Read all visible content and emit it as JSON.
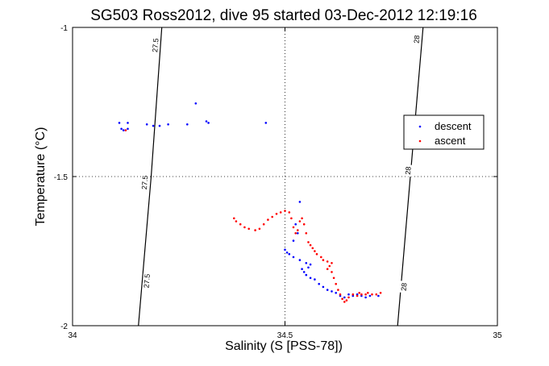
{
  "chart_data": {
    "type": "scatter",
    "title": "SG503 Ross2012, dive 95 started 03-Dec-2012 12:19:16",
    "xlabel": "Salinity (S [PSS-78])",
    "ylabel": "Temperature (°C)",
    "xlim": [
      34,
      35
    ],
    "ylim": [
      -2,
      -1
    ],
    "x_ticks": [
      34,
      34.5,
      35
    ],
    "x_tick_labels": [
      "34",
      "34.5",
      "35"
    ],
    "y_ticks": [
      -2,
      -1.5,
      -1
    ],
    "y_tick_labels": [
      "-2",
      "-1.5",
      "-1"
    ],
    "grid": "dotted",
    "legend_position": "right",
    "density_isolines": [
      {
        "label": "27.5",
        "points": [
          [
            34.155,
            -2.0
          ],
          [
            34.185,
            -1.5
          ],
          [
            34.21,
            -1.0
          ]
        ],
        "label_positions": [
          [
            34.175,
            -1.85
          ],
          [
            34.17,
            -1.52
          ],
          [
            34.195,
            -1.06
          ]
        ]
      },
      {
        "label": "28",
        "points": [
          [
            34.765,
            -2.0
          ],
          [
            34.795,
            -1.5
          ],
          [
            34.825,
            -1.0
          ]
        ],
        "label_positions": [
          [
            34.78,
            -1.87
          ],
          [
            34.79,
            -1.48
          ],
          [
            34.81,
            -1.04
          ]
        ]
      }
    ],
    "series": [
      {
        "name": "descent",
        "color": "#0000ff",
        "points": [
          [
            34.11,
            -1.32
          ],
          [
            34.115,
            -1.34
          ],
          [
            34.12,
            -1.345
          ],
          [
            34.13,
            -1.32
          ],
          [
            34.13,
            -1.34
          ],
          [
            34.175,
            -1.325
          ],
          [
            34.19,
            -1.33
          ],
          [
            34.205,
            -1.33
          ],
          [
            34.225,
            -1.325
          ],
          [
            34.27,
            -1.325
          ],
          [
            34.29,
            -1.255
          ],
          [
            34.315,
            -1.315
          ],
          [
            34.32,
            -1.32
          ],
          [
            34.455,
            -1.32
          ],
          [
            34.535,
            -1.585
          ],
          [
            34.525,
            -1.66
          ],
          [
            34.53,
            -1.69
          ],
          [
            34.52,
            -1.715
          ],
          [
            34.5,
            -1.745
          ],
          [
            34.505,
            -1.755
          ],
          [
            34.51,
            -1.76
          ],
          [
            34.52,
            -1.77
          ],
          [
            34.535,
            -1.78
          ],
          [
            34.55,
            -1.79
          ],
          [
            34.56,
            -1.795
          ],
          [
            34.555,
            -1.805
          ],
          [
            34.54,
            -1.81
          ],
          [
            34.545,
            -1.82
          ],
          [
            34.55,
            -1.83
          ],
          [
            34.56,
            -1.84
          ],
          [
            34.57,
            -1.845
          ],
          [
            34.58,
            -1.86
          ],
          [
            34.59,
            -1.87
          ],
          [
            34.6,
            -1.88
          ],
          [
            34.61,
            -1.885
          ],
          [
            34.62,
            -1.89
          ],
          [
            34.63,
            -1.9
          ],
          [
            34.64,
            -1.905
          ],
          [
            34.65,
            -1.895
          ],
          [
            34.66,
            -1.9
          ],
          [
            34.67,
            -1.895
          ],
          [
            34.68,
            -1.9
          ],
          [
            34.69,
            -1.905
          ],
          [
            34.7,
            -1.9
          ],
          [
            34.72,
            -1.9
          ]
        ]
      },
      {
        "name": "ascent",
        "color": "#ff0000",
        "points": [
          [
            34.125,
            -1.345
          ],
          [
            34.38,
            -1.64
          ],
          [
            34.385,
            -1.65
          ],
          [
            34.395,
            -1.66
          ],
          [
            34.405,
            -1.67
          ],
          [
            34.415,
            -1.675
          ],
          [
            34.43,
            -1.68
          ],
          [
            34.44,
            -1.675
          ],
          [
            34.45,
            -1.66
          ],
          [
            34.46,
            -1.645
          ],
          [
            34.47,
            -1.635
          ],
          [
            34.48,
            -1.625
          ],
          [
            34.49,
            -1.62
          ],
          [
            34.5,
            -1.615
          ],
          [
            34.51,
            -1.62
          ],
          [
            34.515,
            -1.64
          ],
          [
            34.52,
            -1.67
          ],
          [
            34.525,
            -1.69
          ],
          [
            34.53,
            -1.68
          ],
          [
            34.535,
            -1.65
          ],
          [
            34.54,
            -1.64
          ],
          [
            34.545,
            -1.66
          ],
          [
            34.55,
            -1.69
          ],
          [
            34.555,
            -1.72
          ],
          [
            34.56,
            -1.73
          ],
          [
            34.565,
            -1.74
          ],
          [
            34.57,
            -1.75
          ],
          [
            34.575,
            -1.76
          ],
          [
            34.585,
            -1.77
          ],
          [
            34.59,
            -1.78
          ],
          [
            34.6,
            -1.785
          ],
          [
            34.61,
            -1.79
          ],
          [
            34.605,
            -1.8
          ],
          [
            34.6,
            -1.81
          ],
          [
            34.61,
            -1.82
          ],
          [
            34.615,
            -1.84
          ],
          [
            34.62,
            -1.86
          ],
          [
            34.625,
            -1.88
          ],
          [
            34.63,
            -1.895
          ],
          [
            34.635,
            -1.91
          ],
          [
            34.64,
            -1.92
          ],
          [
            34.645,
            -1.915
          ],
          [
            34.65,
            -1.905
          ],
          [
            34.66,
            -1.895
          ],
          [
            34.67,
            -1.9
          ],
          [
            34.675,
            -1.89
          ],
          [
            34.68,
            -1.895
          ],
          [
            34.69,
            -1.895
          ],
          [
            34.695,
            -1.89
          ],
          [
            34.705,
            -1.895
          ],
          [
            34.715,
            -1.895
          ],
          [
            34.725,
            -1.89
          ]
        ]
      }
    ]
  }
}
